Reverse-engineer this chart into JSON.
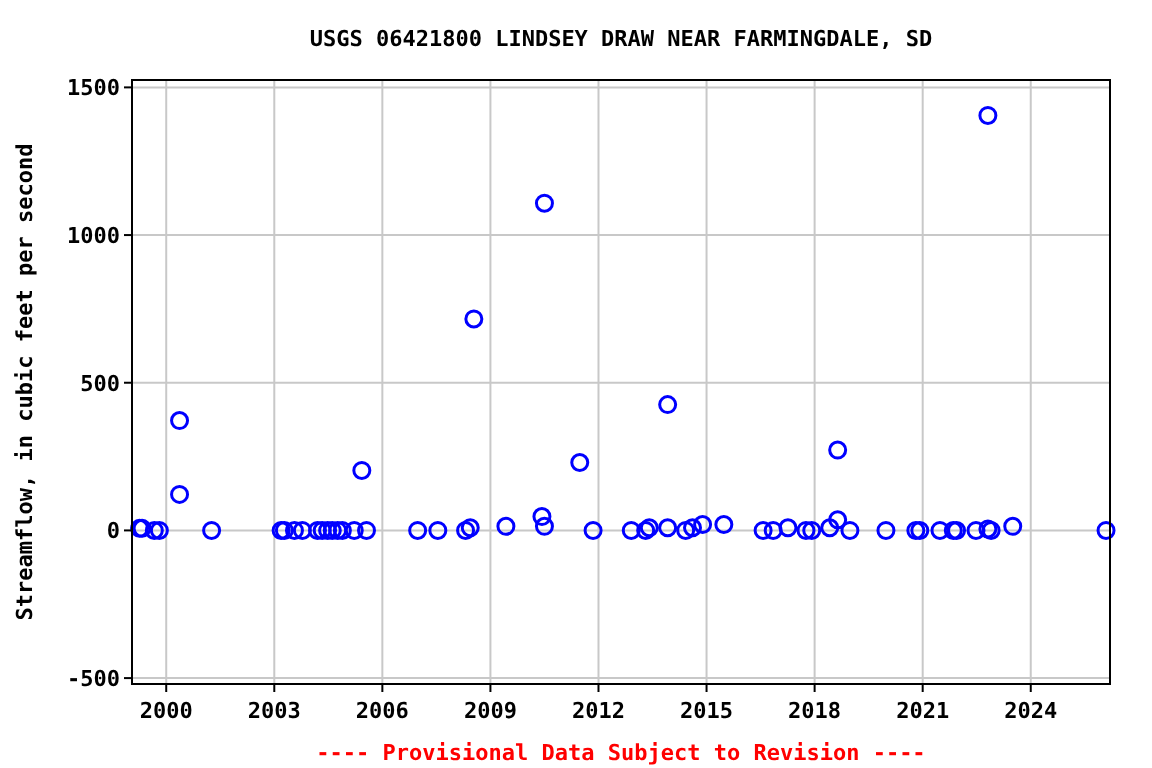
{
  "chart_data": {
    "type": "scatter",
    "title": "USGS 06421800 LINDSEY DRAW NEAR FARMINGDALE, SD",
    "ylabel": "Streamflow, in cubic feet per second",
    "annotations": [
      "---- Provisional Data Subject to Revision ----"
    ],
    "x": [
      1999.26,
      1999.33,
      1999.67,
      1999.81,
      2000.37,
      2000.37,
      2001.26,
      2003.19,
      2003.28,
      2003.56,
      2003.78,
      2004.2,
      2004.33,
      2004.48,
      2004.61,
      2004.76,
      2004.89,
      2005.22,
      2005.43,
      2005.56,
      2006.98,
      2007.54,
      2008.31,
      2008.44,
      2008.54,
      2009.43,
      2010.43,
      2010.5,
      2010.5,
      2011.48,
      2011.85,
      2012.91,
      2013.31,
      2013.41,
      2013.92,
      2013.92,
      2014.42,
      2014.61,
      2014.89,
      2015.48,
      2016.57,
      2016.85,
      2017.26,
      2017.76,
      2017.92,
      2018.42,
      2018.64,
      2018.64,
      2018.98,
      2019.98,
      2020.81,
      2020.92,
      2021.48,
      2021.85,
      2021.94,
      2022.48,
      2022.81,
      2022.81,
      2022.9,
      2023.5,
      2026.09
    ],
    "series": [
      {
        "color": "#0000ff",
        "values": [
          7,
          7,
          0,
          0,
          372,
          122,
          0,
          0,
          0,
          0,
          0,
          0,
          0,
          0,
          0,
          0,
          0,
          0,
          203,
          0,
          0,
          0,
          0,
          9,
          716,
          14,
          47,
          1108,
          14,
          230,
          0,
          0,
          0,
          9,
          426,
          9,
          0,
          9,
          20,
          20,
          0,
          0,
          9,
          0,
          0,
          9,
          272,
          36,
          0,
          0,
          0,
          0,
          0,
          0,
          0,
          0,
          1405,
          5,
          0,
          14,
          0
        ]
      }
    ],
    "xlim": [
      1999.05,
      2026.2
    ],
    "xticks": [
      2000,
      2003,
      2006,
      2009,
      2012,
      2015,
      2018,
      2021,
      2024
    ],
    "ylim": [
      -520,
      1525
    ],
    "yticks": [
      -500,
      0,
      500,
      1000,
      1500
    ],
    "grid": true,
    "marker": "circle"
  }
}
